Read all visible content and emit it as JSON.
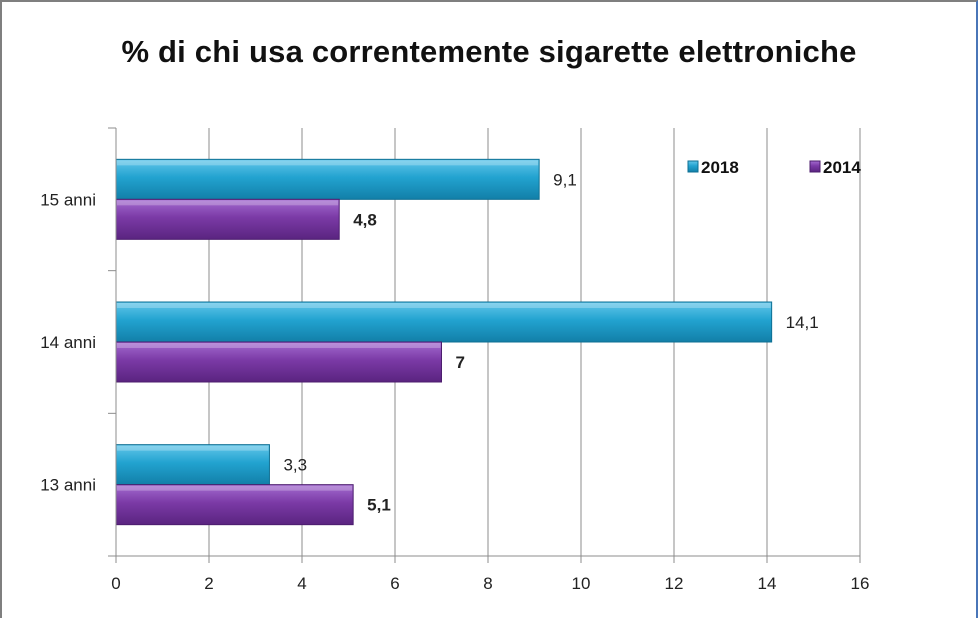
{
  "title": "% di chi usa correntemente sigarette elettroniche",
  "chart_data": {
    "type": "bar",
    "orientation": "horizontal",
    "title": "% di chi usa correntemente sigarette elettroniche",
    "categories": [
      "15 anni",
      "14 anni",
      "13 anni"
    ],
    "series": [
      {
        "name": "2018",
        "values": [
          9.1,
          14.1,
          3.3
        ],
        "labels": [
          "9,1",
          "14,1",
          "3,3"
        ],
        "label_bold": false,
        "color": "#1f9cc8"
      },
      {
        "name": "2014",
        "values": [
          4.8,
          7,
          5.1
        ],
        "labels": [
          "4,8",
          "7",
          "5,1"
        ],
        "label_bold": true,
        "color": "#7b3aa6"
      }
    ],
    "x_ticks": [
      "0",
      "2",
      "4",
      "6",
      "8",
      "10",
      "12",
      "14",
      "16"
    ],
    "xlim": [
      0,
      16
    ],
    "grid": true,
    "legend_position": "top-right"
  }
}
